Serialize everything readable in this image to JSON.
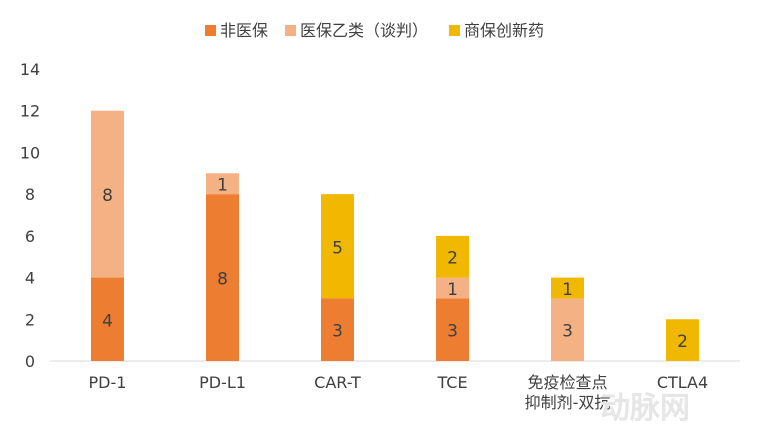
{
  "chart_data": {
    "type": "bar",
    "stacked": true,
    "categories": [
      [
        "PD-1"
      ],
      [
        "PD-L1"
      ],
      [
        "CAR-T"
      ],
      [
        "TCE"
      ],
      [
        "免疫检查点",
        "抑制剂-双抗"
      ],
      [
        "CTLA4"
      ]
    ],
    "series": [
      {
        "name": "非医保",
        "color": "#ED7D31",
        "values": [
          4,
          8,
          3,
          3,
          0,
          0
        ]
      },
      {
        "name": "医保乙类（谈判）",
        "color": "#F4B183",
        "values": [
          8,
          1,
          0,
          1,
          3,
          0
        ]
      },
      {
        "name": "商保创新药",
        "color": "#F0B800",
        "values": [
          0,
          0,
          5,
          2,
          1,
          2
        ]
      }
    ],
    "ylim": [
      0,
      14
    ],
    "yticks": [
      0,
      2,
      4,
      6,
      8,
      10,
      12,
      14
    ],
    "grid": false,
    "legend": "top"
  },
  "watermark": "动脉网"
}
